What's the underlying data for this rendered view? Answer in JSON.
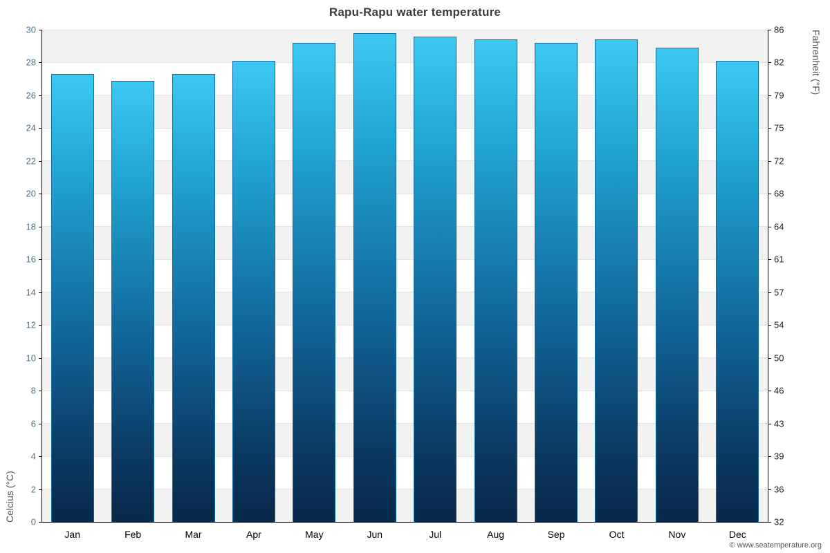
{
  "chart_data": {
    "type": "bar",
    "title": "Rapu-Rapu water temperature",
    "ylabel_left": "Celcius (°C)",
    "ylabel_right": "Fahrenheit (°F)",
    "attribution": "© www.seatemperature.org",
    "categories": [
      "Jan",
      "Feb",
      "Mar",
      "Apr",
      "May",
      "Jun",
      "Jul",
      "Aug",
      "Sep",
      "Oct",
      "Nov",
      "Dec"
    ],
    "values_celsius": [
      27.3,
      26.9,
      27.3,
      28.1,
      29.2,
      29.8,
      29.6,
      29.4,
      29.2,
      29.4,
      28.9,
      28.1
    ],
    "ylim_left": [
      0,
      30
    ],
    "yticks_left": [
      0,
      2,
      4,
      6,
      8,
      10,
      12,
      14,
      16,
      18,
      20,
      22,
      24,
      26,
      28,
      30
    ],
    "yticks_right_labels": [
      "32",
      "36",
      "39",
      "43",
      "46",
      "50",
      "54",
      "57",
      "61",
      "64",
      "68",
      "72",
      "75",
      "79",
      "82",
      "86"
    ],
    "grid": true,
    "legend": false,
    "bar_color_top": "#3cc8f2",
    "bar_color_bottom": "#08294a",
    "bar_border_color": "#0e6d9c",
    "band_color": "#f2f2f2"
  }
}
